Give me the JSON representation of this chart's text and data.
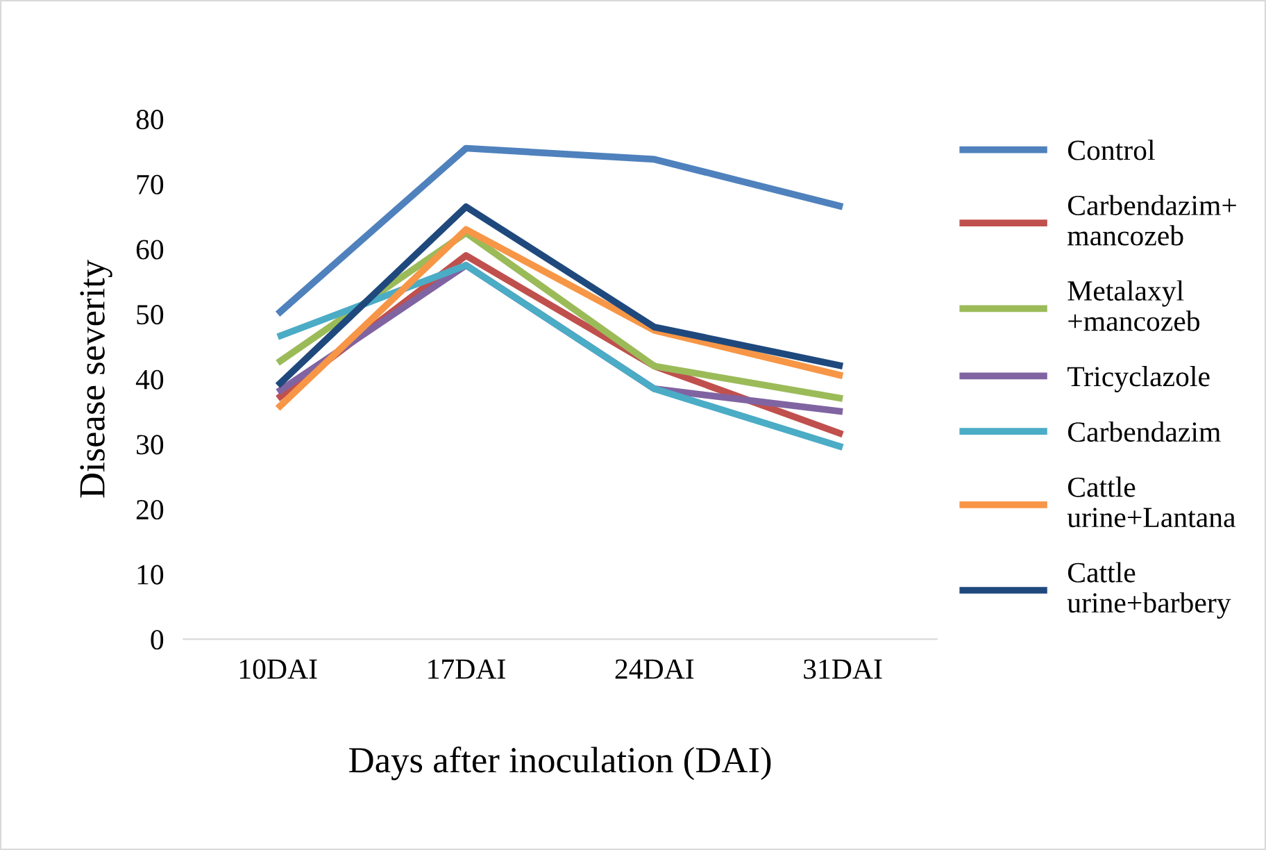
{
  "chart_data": {
    "type": "line",
    "xlabel": "Days after inoculation (DAI)",
    "ylabel": "Disease severity",
    "categories": [
      "10DAI",
      "17DAI",
      "24DAI",
      "31DAI"
    ],
    "ylim": [
      0,
      80
    ],
    "yticks": [
      0,
      10,
      20,
      30,
      40,
      50,
      60,
      70,
      80
    ],
    "grid": false,
    "legend": "right",
    "marker": "none",
    "line_style": "solid",
    "series": [
      {
        "name": "Control",
        "color": "#4f81bd",
        "values": [
          50,
          75.5,
          73.8,
          66.5
        ]
      },
      {
        "name": "Carbendazim+\nmancozeb",
        "color": "#c0504d",
        "values": [
          37,
          59,
          42,
          31.5
        ]
      },
      {
        "name": "Metalaxyl\n+mancozeb",
        "color": "#9bbb59",
        "values": [
          42.5,
          62.5,
          42,
          37
        ]
      },
      {
        "name": "Tricyclazole",
        "color": "#8064a2",
        "values": [
          38,
          57.5,
          38.5,
          35
        ]
      },
      {
        "name": "Carbendazim",
        "color": "#4bacc6",
        "values": [
          46.5,
          57.5,
          38.5,
          29.5
        ]
      },
      {
        "name": "Cattle\nurine+Lantana",
        "color": "#f79646",
        "values": [
          35.5,
          63,
          47.5,
          40.5
        ]
      },
      {
        "name": "Cattle\nurine+barbery",
        "color": "#1f497d",
        "values": [
          39,
          66.5,
          48,
          42
        ]
      }
    ]
  }
}
